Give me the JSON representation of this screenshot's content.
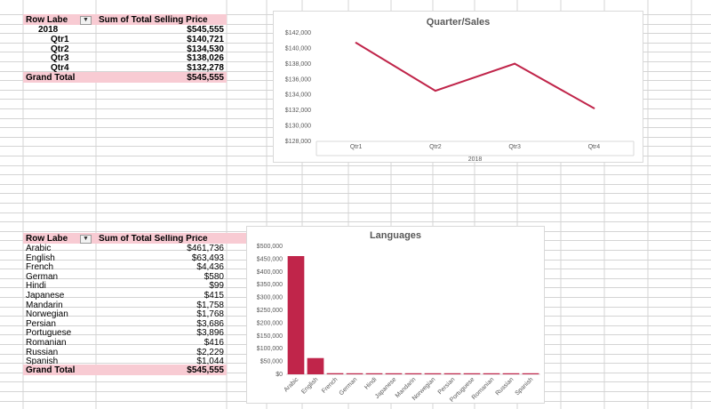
{
  "pivot1": {
    "header_row_labels": "Row Labe",
    "header_value": "Sum of Total Selling Price",
    "year_label": "2018",
    "year_value": "$545,555",
    "rows": [
      {
        "label": "Qtr1",
        "value": "$140,721"
      },
      {
        "label": "Qtr2",
        "value": "$134,530"
      },
      {
        "label": "Qtr3",
        "value": "$138,026"
      },
      {
        "label": "Qtr4",
        "value": "$132,278"
      }
    ],
    "total_label": "Grand Total",
    "total_value": "$545,555",
    "filter_icon": "filter-dropdown-icon"
  },
  "pivot2": {
    "header_row_labels": "Row Labe",
    "header_value": "Sum of Total Selling Price",
    "rows": [
      {
        "label": "Arabic",
        "value": "$461,736"
      },
      {
        "label": "English",
        "value": "$63,493"
      },
      {
        "label": "French",
        "value": "$4,436"
      },
      {
        "label": "German",
        "value": "$580"
      },
      {
        "label": "Hindi",
        "value": "$99"
      },
      {
        "label": "Japanese",
        "value": "$415"
      },
      {
        "label": "Mandarin",
        "value": "$1,758"
      },
      {
        "label": "Norwegian",
        "value": "$1,768"
      },
      {
        "label": "Persian",
        "value": "$3,686"
      },
      {
        "label": "Portuguese",
        "value": "$3,896"
      },
      {
        "label": "Romanian",
        "value": "$416"
      },
      {
        "label": "Russian",
        "value": "$2,229"
      },
      {
        "label": "Spanish",
        "value": "$1,044"
      }
    ],
    "total_label": "Grand Total",
    "total_value": "$545,555",
    "filter_icon": "chevron-down-icon"
  },
  "colors": {
    "accent": "#c0254a",
    "band": "#f8cbd3",
    "grid": "#d4d4d4"
  },
  "chart_data": [
    {
      "type": "line",
      "title": "Quarter/Sales",
      "categories": [
        "Qtr1",
        "Qtr2",
        "Qtr3",
        "Qtr4"
      ],
      "group_label": "2018",
      "values": [
        140721,
        134530,
        138026,
        132278
      ],
      "ylim": [
        128000,
        142000
      ],
      "yticks": [
        "$128,000",
        "$130,000",
        "$132,000",
        "$134,000",
        "$136,000",
        "$138,000",
        "$140,000",
        "$142,000"
      ],
      "grid": false,
      "legend": "none"
    },
    {
      "type": "bar",
      "title": "Languages",
      "categories": [
        "Arabic",
        "English",
        "French",
        "German",
        "Hindi",
        "Japanese",
        "Mandarin",
        "Norwegian",
        "Persian",
        "Portuguese",
        "Romanian",
        "Russian",
        "Spanish"
      ],
      "values": [
        461736,
        63493,
        4436,
        580,
        99,
        415,
        1758,
        1768,
        3686,
        3896,
        416,
        2229,
        1044
      ],
      "ylim": [
        0,
        500000
      ],
      "yticks": [
        "$0",
        "$50,000",
        "$100,000",
        "$150,000",
        "$200,000",
        "$250,000",
        "$300,000",
        "$350,000",
        "$400,000",
        "$450,000",
        "$500,000"
      ],
      "grid": false,
      "legend": "none"
    }
  ]
}
